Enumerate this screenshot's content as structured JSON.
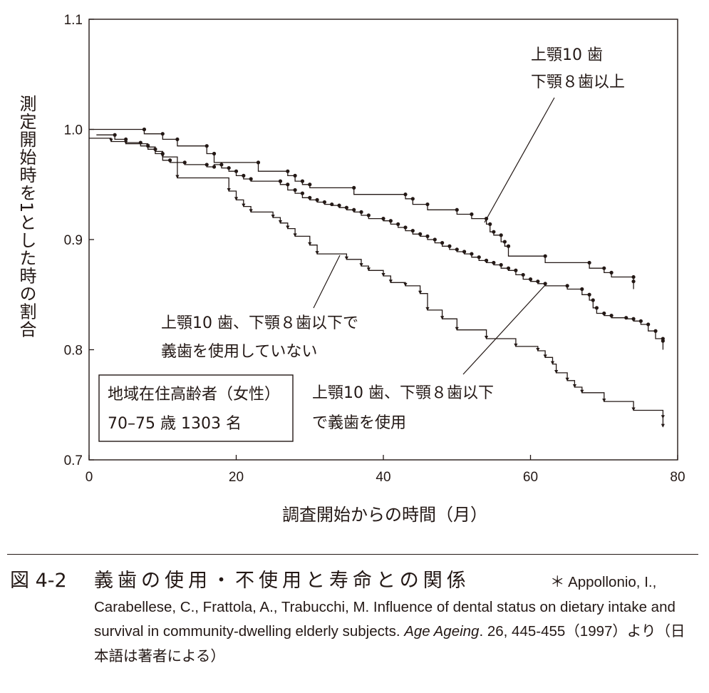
{
  "chart_data": {
    "type": "line",
    "subtype": "kaplan-meier step",
    "xlabel": "調査開始からの時間（月）",
    "ylabel": "測定開始時を1とした時の割合",
    "xlim": [
      0,
      80
    ],
    "ylim": [
      0.7,
      1.1
    ],
    "x_ticks": [
      "0",
      "20",
      "40",
      "60",
      "80"
    ],
    "y_ticks": [
      "0.7",
      "0.8",
      "0.9",
      "1.0",
      "1.1"
    ],
    "grid": false,
    "box_label": [
      "地域在住高齢者（女性）",
      "70–75 歳 1303 名"
    ],
    "series": [
      {
        "name": "上顎10 歯 下顎８歯以上",
        "label_lines": [
          "上顎10 歯",
          "下顎８歯以上"
        ],
        "marker": "dot",
        "points": [
          [
            0,
            1.0
          ],
          [
            7.5,
            0.996
          ],
          [
            10,
            0.991
          ],
          [
            12,
            0.985
          ],
          [
            16,
            0.978
          ],
          [
            17,
            0.97
          ],
          [
            23,
            0.962
          ],
          [
            27,
            0.958
          ],
          [
            28,
            0.953
          ],
          [
            29,
            0.95
          ],
          [
            30,
            0.947
          ],
          [
            36,
            0.941
          ],
          [
            43,
            0.937
          ],
          [
            44,
            0.932
          ],
          [
            46,
            0.927
          ],
          [
            50,
            0.923
          ],
          [
            52,
            0.919
          ],
          [
            54,
            0.914
          ],
          [
            54.5,
            0.907
          ],
          [
            55,
            0.904
          ],
          [
            56,
            0.898
          ],
          [
            56.5,
            0.894
          ],
          [
            57,
            0.885
          ],
          [
            62,
            0.879
          ],
          [
            68,
            0.874
          ],
          [
            70,
            0.87
          ],
          [
            71,
            0.866
          ],
          [
            74,
            0.862
          ],
          [
            74,
            0.855
          ]
        ]
      },
      {
        "name": "上顎10 歯、下顎８歯以下で義歯を使用",
        "label_lines": [
          "上顎10 歯、下顎８歯以下",
          "で義歯を使用"
        ],
        "marker": "dot",
        "points": [
          [
            1,
            0.995
          ],
          [
            3.5,
            0.991
          ],
          [
            5,
            0.988
          ],
          [
            7,
            0.985
          ],
          [
            8,
            0.982
          ],
          [
            9,
            0.978
          ],
          [
            10,
            0.972
          ],
          [
            11,
            0.97
          ],
          [
            13,
            0.968
          ],
          [
            16,
            0.966
          ],
          [
            17,
            0.968
          ],
          [
            18,
            0.965
          ],
          [
            19,
            0.962
          ],
          [
            20,
            0.958
          ],
          [
            21,
            0.955
          ],
          [
            22,
            0.953
          ],
          [
            26,
            0.95
          ],
          [
            27,
            0.945
          ],
          [
            28,
            0.942
          ],
          [
            29,
            0.938
          ],
          [
            30,
            0.936
          ],
          [
            31,
            0.934
          ],
          [
            32,
            0.932
          ],
          [
            33,
            0.931
          ],
          [
            34,
            0.929
          ],
          [
            35,
            0.927
          ],
          [
            36,
            0.925
          ],
          [
            37,
            0.922
          ],
          [
            38,
            0.919
          ],
          [
            40,
            0.917
          ],
          [
            41,
            0.914
          ],
          [
            42,
            0.911
          ],
          [
            43,
            0.908
          ],
          [
            44,
            0.905
          ],
          [
            45,
            0.903
          ],
          [
            46,
            0.9
          ],
          [
            47,
            0.897
          ],
          [
            48,
            0.894
          ],
          [
            49,
            0.891
          ],
          [
            50,
            0.889
          ],
          [
            51,
            0.887
          ],
          [
            52,
            0.884
          ],
          [
            53,
            0.881
          ],
          [
            54,
            0.879
          ],
          [
            55,
            0.877
          ],
          [
            56,
            0.874
          ],
          [
            57,
            0.872
          ],
          [
            58,
            0.868
          ],
          [
            59,
            0.864
          ],
          [
            60,
            0.862
          ],
          [
            61,
            0.86
          ],
          [
            62,
            0.858
          ],
          [
            65,
            0.855
          ],
          [
            67,
            0.85
          ],
          [
            68,
            0.845
          ],
          [
            68.5,
            0.838
          ],
          [
            69,
            0.833
          ],
          [
            70,
            0.831
          ],
          [
            71,
            0.829
          ],
          [
            73,
            0.828
          ],
          [
            74,
            0.826
          ],
          [
            75,
            0.823
          ],
          [
            76,
            0.817
          ],
          [
            77,
            0.81
          ],
          [
            78,
            0.808
          ],
          [
            78,
            0.8
          ]
        ]
      },
      {
        "name": "上顎10 歯、下顎８歯以下で義歯を使用していない",
        "label_lines": [
          "上顎10 歯、下顎８歯以下で",
          "義歯を使用していない"
        ],
        "marker": "arrow",
        "points": [
          [
            0,
            0.992
          ],
          [
            3,
            0.989
          ],
          [
            5,
            0.987
          ],
          [
            8,
            0.984
          ],
          [
            9,
            0.98
          ],
          [
            10,
            0.975
          ],
          [
            12,
            0.956
          ],
          [
            19,
            0.944
          ],
          [
            20,
            0.936
          ],
          [
            21,
            0.93
          ],
          [
            22,
            0.925
          ],
          [
            25,
            0.92
          ],
          [
            26,
            0.915
          ],
          [
            27,
            0.91
          ],
          [
            28,
            0.903
          ],
          [
            30,
            0.895
          ],
          [
            31,
            0.887
          ],
          [
            35,
            0.882
          ],
          [
            37,
            0.876
          ],
          [
            38,
            0.872
          ],
          [
            40,
            0.867
          ],
          [
            41,
            0.861
          ],
          [
            43,
            0.858
          ],
          [
            45,
            0.851
          ],
          [
            46,
            0.836
          ],
          [
            48,
            0.828
          ],
          [
            50,
            0.818
          ],
          [
            54,
            0.81
          ],
          [
            58,
            0.803
          ],
          [
            61,
            0.799
          ],
          [
            62,
            0.793
          ],
          [
            63,
            0.787
          ],
          [
            63.5,
            0.779
          ],
          [
            65,
            0.772
          ],
          [
            66,
            0.766
          ],
          [
            67,
            0.761
          ],
          [
            70,
            0.753
          ],
          [
            74,
            0.745
          ],
          [
            78,
            0.738
          ],
          [
            78,
            0.73
          ]
        ]
      }
    ]
  },
  "caption": {
    "fig_no": "図 4-2",
    "title": "義歯の使用・不使用と寿命との関係",
    "ref_prefix": "＊ Appollonio, I., Carabellese, C., Frattola, A., Trabucchi, M. Influence of dental status on dietary intake and survival in community-dwelling elderly subjects. ",
    "ref_journal": "Age Ageing",
    "ref_suffix": ". 26, 445-455（1997）より（日本語は著者による）"
  }
}
